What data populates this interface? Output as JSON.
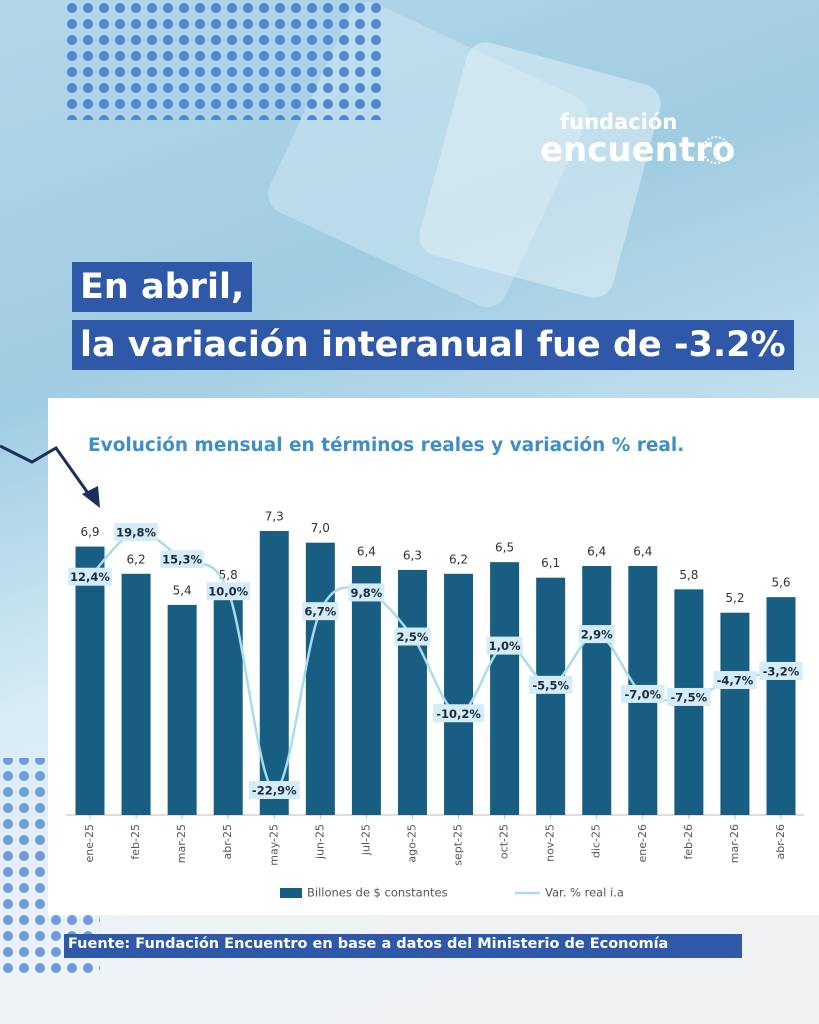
{
  "header": {
    "logo_top": "fundación",
    "logo_bottom": "encuentro",
    "headline": [
      "En abril,",
      "la variación interanual fue de -3.2%"
    ]
  },
  "chart_data": {
    "type": "bar",
    "title": "Evolución mensual en términos reales y variación % real.",
    "categories": [
      "ene-25",
      "feb-25",
      "mar-25",
      "abr-25",
      "may-25",
      "jun-25",
      "jul-25",
      "ago-25",
      "sept-25",
      "oct-25",
      "nov-25",
      "dic-25",
      "ene-26",
      "feb-26",
      "mar-26",
      "abr-26"
    ],
    "series": [
      {
        "name": "Billones de $ constantes",
        "color": "#175e82",
        "values": [
          6.9,
          6.2,
          5.4,
          5.8,
          7.3,
          7.0,
          6.4,
          6.3,
          6.2,
          6.5,
          6.1,
          6.4,
          6.4,
          5.8,
          5.2,
          5.6
        ],
        "value_labels": [
          "6,9",
          "6,2",
          "5,4",
          "5,8",
          "7,3",
          "7,0",
          "6,4",
          "6,3",
          "6,2",
          "6,5",
          "6,1",
          "6,4",
          "6,4",
          "5,8",
          "5,2",
          "5,6"
        ]
      },
      {
        "name": "Var. % real i.a",
        "color": "#a9dbee",
        "type": "line",
        "axis": "y2",
        "values": [
          12.4,
          19.8,
          15.3,
          10.0,
          -22.9,
          6.7,
          9.8,
          2.5,
          -10.2,
          1.0,
          -5.5,
          2.9,
          -7.0,
          -7.5,
          -4.7,
          -3.2
        ],
        "value_labels": [
          "12,4%",
          "19,8%",
          "15,3%",
          "10,0%",
          "-22,9%",
          "6,7%",
          "9,8%",
          "2,5%",
          "-10,2%",
          "1,0%",
          "-5,5%",
          "2,9%",
          "-7,0%",
          "-7,5%",
          "-4,7%",
          "-3,2%"
        ]
      }
    ]
  },
  "source": "Fuente:  Fundación  Encuentro en base a datos del Ministerio de Economía"
}
